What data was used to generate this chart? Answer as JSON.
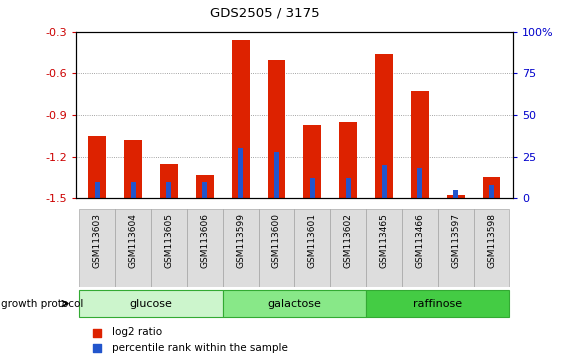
{
  "title": "GDS2505 / 3175",
  "samples": [
    "GSM113603",
    "GSM113604",
    "GSM113605",
    "GSM113606",
    "GSM113599",
    "GSM113600",
    "GSM113601",
    "GSM113602",
    "GSM113465",
    "GSM113466",
    "GSM113597",
    "GSM113598"
  ],
  "log2_ratio": [
    -1.05,
    -1.08,
    -1.25,
    -1.33,
    -0.36,
    -0.5,
    -0.97,
    -0.95,
    -0.46,
    -0.73,
    -1.48,
    -1.35
  ],
  "percentile": [
    10,
    10,
    10,
    10,
    30,
    28,
    12,
    12,
    20,
    18,
    5,
    8
  ],
  "groups": [
    {
      "label": "glucose",
      "start": 0,
      "end": 3,
      "color": "#ccf5cc"
    },
    {
      "label": "galactose",
      "start": 4,
      "end": 7,
      "color": "#88e888"
    },
    {
      "label": "raffinose",
      "start": 8,
      "end": 11,
      "color": "#44cc44"
    }
  ],
  "ylim_left": [
    -1.5,
    -0.3
  ],
  "ylim_right": [
    0,
    100
  ],
  "bar_color_red": "#dd2200",
  "bar_color_blue": "#2255cc",
  "bar_width": 0.5,
  "left_axis_color": "#cc0000",
  "right_axis_color": "#0000cc",
  "yticks_left": [
    -1.5,
    -1.2,
    -0.9,
    -0.6,
    -0.3
  ],
  "yticks_right": [
    0,
    25,
    50,
    75,
    100
  ],
  "ytick_labels_right": [
    "0",
    "25",
    "50",
    "75",
    "100%"
  ],
  "grid_color": "#888888",
  "bg_color": "#ffffff",
  "sample_box_color": "#dddddd",
  "group_border_color": "#33aa33"
}
